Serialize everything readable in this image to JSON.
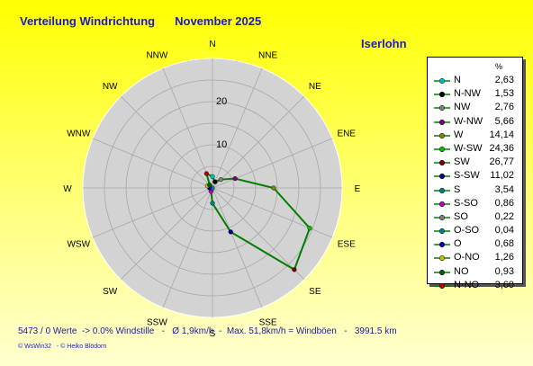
{
  "header": {
    "title": "Verteilung Windrichtung",
    "month": "November 2025",
    "station": "Iserlohn"
  },
  "legend": {
    "unit_label": "%"
  },
  "footer": {
    "stats": "5473 / 0 Werte  -> 0.0% Windstille   -   Ø 1,9km/h  -  Max. 51,8km/h = Windböen   -   3991.5 km",
    "copyright": "© WsWin32   - © Heiko Blödorn"
  },
  "chart_data": {
    "type": "radar",
    "title": "Verteilung Windrichtung   November 2025",
    "unit": "%",
    "rlim": [
      0,
      30
    ],
    "radial_ticks": [
      {
        "value": 10,
        "label": "10"
      },
      {
        "value": 20,
        "label": "20"
      }
    ],
    "grid": true,
    "legend_position": "right",
    "line_color": "#008000",
    "area_color": "#d3d3d3",
    "series": [
      {
        "direction": "N",
        "legend_label": "N",
        "value_label": "2,63",
        "value": 2.63,
        "color": "#00c0c0"
      },
      {
        "direction": "NNE",
        "legend_label": "N-NW",
        "value_label": "1,53",
        "value": 1.53,
        "color": "#000000"
      },
      {
        "direction": "NE",
        "legend_label": "NW",
        "value_label": "2,76",
        "value": 2.76,
        "color": "#808080"
      },
      {
        "direction": "ENE",
        "legend_label": "W-NW",
        "value_label": "5,66",
        "value": 5.66,
        "color": "#800080"
      },
      {
        "direction": "E",
        "legend_label": "W",
        "value_label": "14,14",
        "value": 14.14,
        "color": "#808000"
      },
      {
        "direction": "ESE",
        "legend_label": "W-SW",
        "value_label": "24,36",
        "value": 24.36,
        "color": "#00c000"
      },
      {
        "direction": "SE",
        "legend_label": "SW",
        "value_label": "26,77",
        "value": 26.77,
        "color": "#800000"
      },
      {
        "direction": "SSE",
        "legend_label": "S-SW",
        "value_label": "11,02",
        "value": 11.02,
        "color": "#000080"
      },
      {
        "direction": "S",
        "legend_label": "S",
        "value_label": "3,54",
        "value": 3.54,
        "color": "#008080"
      },
      {
        "direction": "SSW",
        "legend_label": "S-SO",
        "value_label": "0,86",
        "value": 0.86,
        "color": "#c000c0"
      },
      {
        "direction": "SW",
        "legend_label": "SO",
        "value_label": "0,22",
        "value": 0.22,
        "color": "#808080"
      },
      {
        "direction": "WSW",
        "legend_label": "O-SO",
        "value_label": "0,04",
        "value": 0.04,
        "color": "#008080"
      },
      {
        "direction": "W",
        "legend_label": "O",
        "value_label": "0,68",
        "value": 0.68,
        "color": "#0000c0"
      },
      {
        "direction": "WNW",
        "legend_label": "O-NO",
        "value_label": "1,26",
        "value": 1.26,
        "color": "#c0c000"
      },
      {
        "direction": "NW",
        "legend_label": "NO",
        "value_label": "0,93",
        "value": 0.93,
        "color": "#006000"
      },
      {
        "direction": "NNW",
        "legend_label": "N-NO",
        "value_label": "3,60",
        "value": 3.6,
        "color": "#c00000"
      }
    ]
  }
}
